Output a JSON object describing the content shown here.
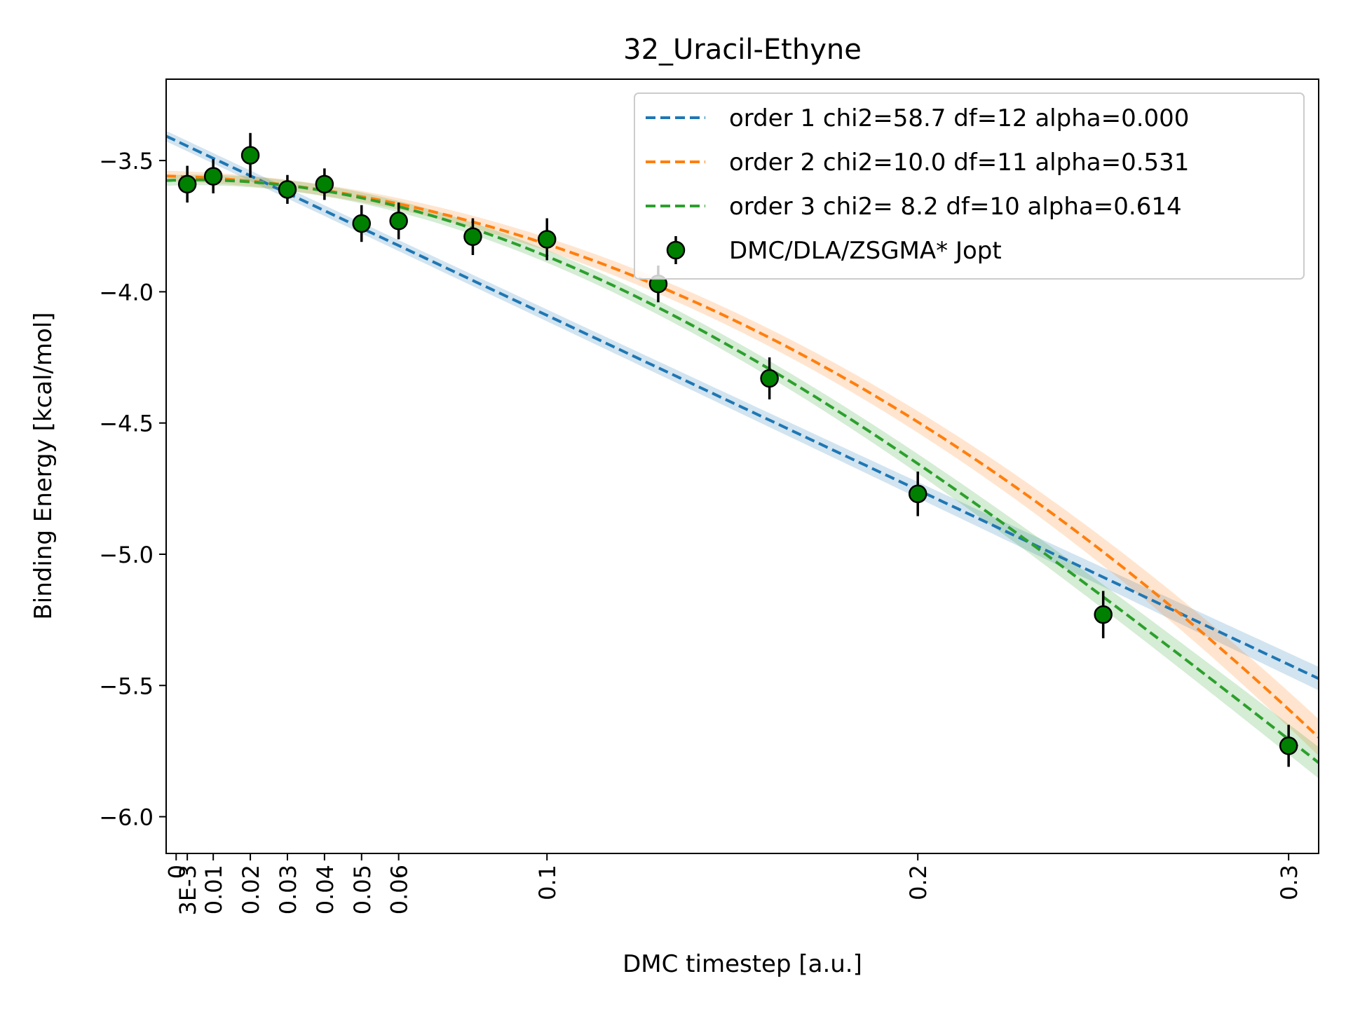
{
  "chart_data": {
    "type": "scatter",
    "title": "32_Uracil-Ethyne",
    "xlabel": "DMC timestep [a.u.]",
    "ylabel": "Binding Energy [kcal/mol]",
    "xlim": [
      -0.0027,
      0.3081
    ],
    "ylim": [
      -6.14,
      -3.19
    ],
    "x_ticks": [
      {
        "value": 0,
        "label": "0"
      },
      {
        "value": 0.003,
        "label": "3E-3"
      },
      {
        "value": 0.01,
        "label": "0.01"
      },
      {
        "value": 0.02,
        "label": "0.02"
      },
      {
        "value": 0.03,
        "label": "0.03"
      },
      {
        "value": 0.04,
        "label": "0.04"
      },
      {
        "value": 0.05,
        "label": "0.05"
      },
      {
        "value": 0.06,
        "label": "0.06"
      },
      {
        "value": 0.1,
        "label": "0.1"
      },
      {
        "value": 0.2,
        "label": "0.2"
      },
      {
        "value": 0.3,
        "label": "0.3"
      }
    ],
    "y_ticks": [
      {
        "value": -3.5,
        "label": "−3.5"
      },
      {
        "value": -4.0,
        "label": "−4.0"
      },
      {
        "value": -4.5,
        "label": "−4.5"
      },
      {
        "value": -5.0,
        "label": "−5.0"
      },
      {
        "value": -5.5,
        "label": "−5.5"
      },
      {
        "value": -6.0,
        "label": "−6.0"
      }
    ],
    "legend_position": "top-right",
    "grid": false,
    "data_series": {
      "name": "DMC/DLA/ZSGMA* Jopt",
      "color": "#008000",
      "x": [
        0.003,
        0.01,
        0.02,
        0.03,
        0.04,
        0.05,
        0.06,
        0.08,
        0.1,
        0.13,
        0.16,
        0.2,
        0.25,
        0.3
      ],
      "y": [
        -3.59,
        -3.56,
        -3.48,
        -3.61,
        -3.59,
        -3.74,
        -3.73,
        -3.79,
        -3.8,
        -3.97,
        -4.33,
        -4.77,
        -5.23,
        -5.73
      ],
      "err": [
        0.07,
        0.065,
        0.085,
        0.055,
        0.06,
        0.07,
        0.07,
        0.07,
        0.08,
        0.07,
        0.08,
        0.085,
        0.09,
        0.08
      ]
    },
    "fits": [
      {
        "name": "order 1 chi2=58.7 df=12 alpha=0.000",
        "color": "#1f77b4",
        "coeffs": [
          -3.425,
          -6.65
        ],
        "band": [
          0.02,
          0.045
        ]
      },
      {
        "name": "order 2 chi2=10.0 df=11 alpha=0.531",
        "color": "#ff7f0e",
        "coeffs": [
          -3.56,
          -0.5,
          -20.9
        ],
        "band": [
          0.02,
          0.07
        ]
      },
      {
        "name": "order 3 chi2= 8.2 df=10 alpha=0.614",
        "color": "#2ca02c",
        "coeffs": [
          -3.575,
          0.4,
          -37.0,
          40.0
        ],
        "band": [
          0.02,
          0.06
        ]
      }
    ]
  }
}
